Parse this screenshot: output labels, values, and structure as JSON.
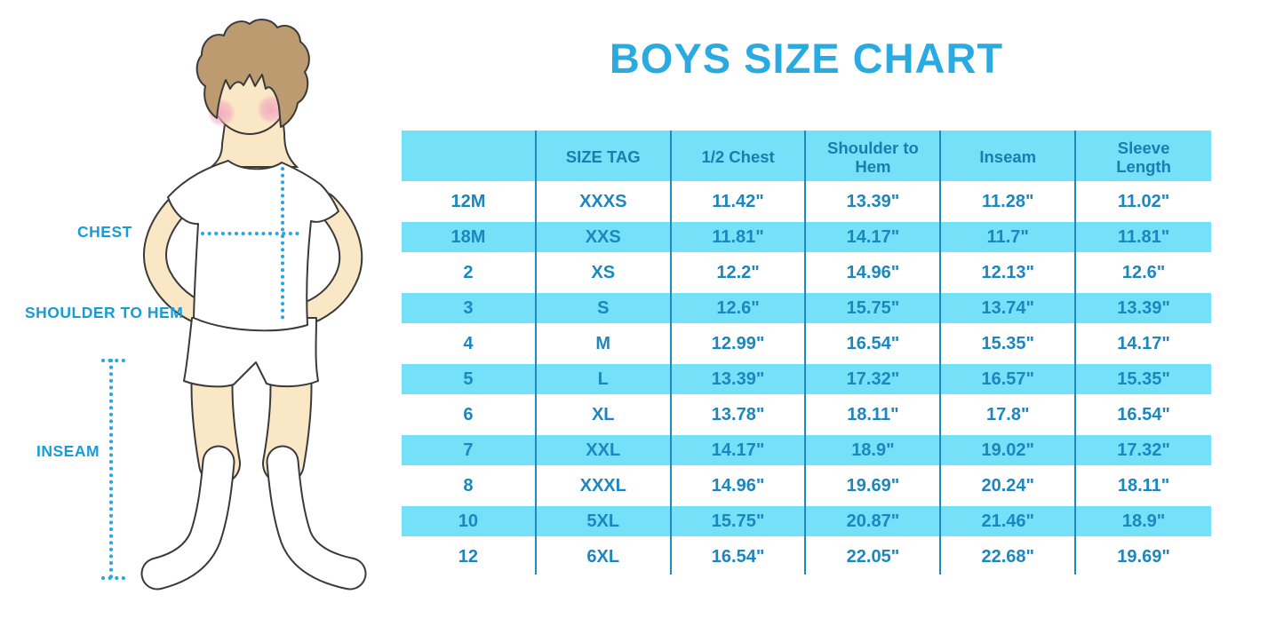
{
  "title": "BOYS SIZE CHART",
  "figure": {
    "illustration": "boy-in-white-tshirt-shorts-and-knee-socks",
    "labels": {
      "chest": "CHEST",
      "shoulder_to_hem": "SHOULDER TO HEM",
      "inseam": "INSEAM"
    }
  },
  "chart_data": {
    "type": "table",
    "title": "BOYS SIZE CHART",
    "columns": [
      "",
      "SIZE TAG",
      "1/2 Chest",
      "Shoulder to Hem",
      "Inseam",
      "Sleeve Length"
    ],
    "rows": [
      [
        "12M",
        "XXXS",
        "11.42\"",
        "13.39\"",
        "11.28\"",
        "11.02\""
      ],
      [
        "18M",
        "XXS",
        "11.81\"",
        "14.17\"",
        "11.7\"",
        "11.81\""
      ],
      [
        "2",
        "XS",
        "12.2\"",
        "14.96\"",
        "12.13\"",
        "12.6\""
      ],
      [
        "3",
        "S",
        "12.6\"",
        "15.75\"",
        "13.74\"",
        "13.39\""
      ],
      [
        "4",
        "M",
        "12.99\"",
        "16.54\"",
        "15.35\"",
        "14.17\""
      ],
      [
        "5",
        "L",
        "13.39\"",
        "17.32\"",
        "16.57\"",
        "15.35\""
      ],
      [
        "6",
        "XL",
        "13.78\"",
        "18.11\"",
        "17.8\"",
        "16.54\""
      ],
      [
        "7",
        "XXL",
        "14.17\"",
        "18.9\"",
        "19.02\"",
        "17.32\""
      ],
      [
        "8",
        "XXXL",
        "14.96\"",
        "19.69\"",
        "20.24\"",
        "18.11\""
      ],
      [
        "10",
        "5XL",
        "15.75\"",
        "20.87\"",
        "21.46\"",
        "18.9\""
      ],
      [
        "12",
        "6XL",
        "16.54\"",
        "22.05\"",
        "22.68\"",
        "19.69\""
      ]
    ],
    "layout": {
      "striped_rows": "alternating, header and odd data rows light blue",
      "grid": "vertical dividers only"
    }
  },
  "colors": {
    "title_blue": "#29ABE2",
    "stripe_blue": "#74E1F8",
    "divider_blue": "#1F8ABF",
    "cell_text": "#1C86BE",
    "header_text": "#1B7CB0",
    "label_blue": "#189CD8",
    "dotline": "#29A6DF",
    "skin": "#FAE7C5",
    "hair": "#BD9B70",
    "blush": "#F2A9BE",
    "outline": "#3A3A3A"
  }
}
